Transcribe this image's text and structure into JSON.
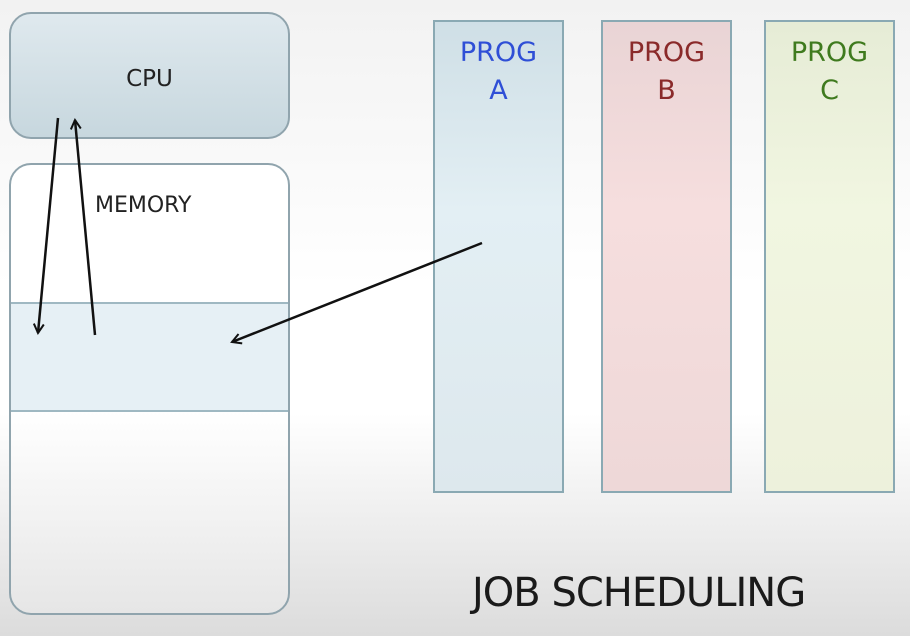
{
  "cpu": {
    "label": "CPU"
  },
  "memory": {
    "label": "MEMORY"
  },
  "programs": [
    {
      "line1": "PROG",
      "line2": "A",
      "color": "#2f4fd6"
    },
    {
      "line1": "PROG",
      "line2": "B",
      "color": "#8a2a2a"
    },
    {
      "line1": "PROG",
      "line2": "C",
      "color": "#3f7a1e"
    }
  ],
  "title": "JOB SCHEDULING"
}
